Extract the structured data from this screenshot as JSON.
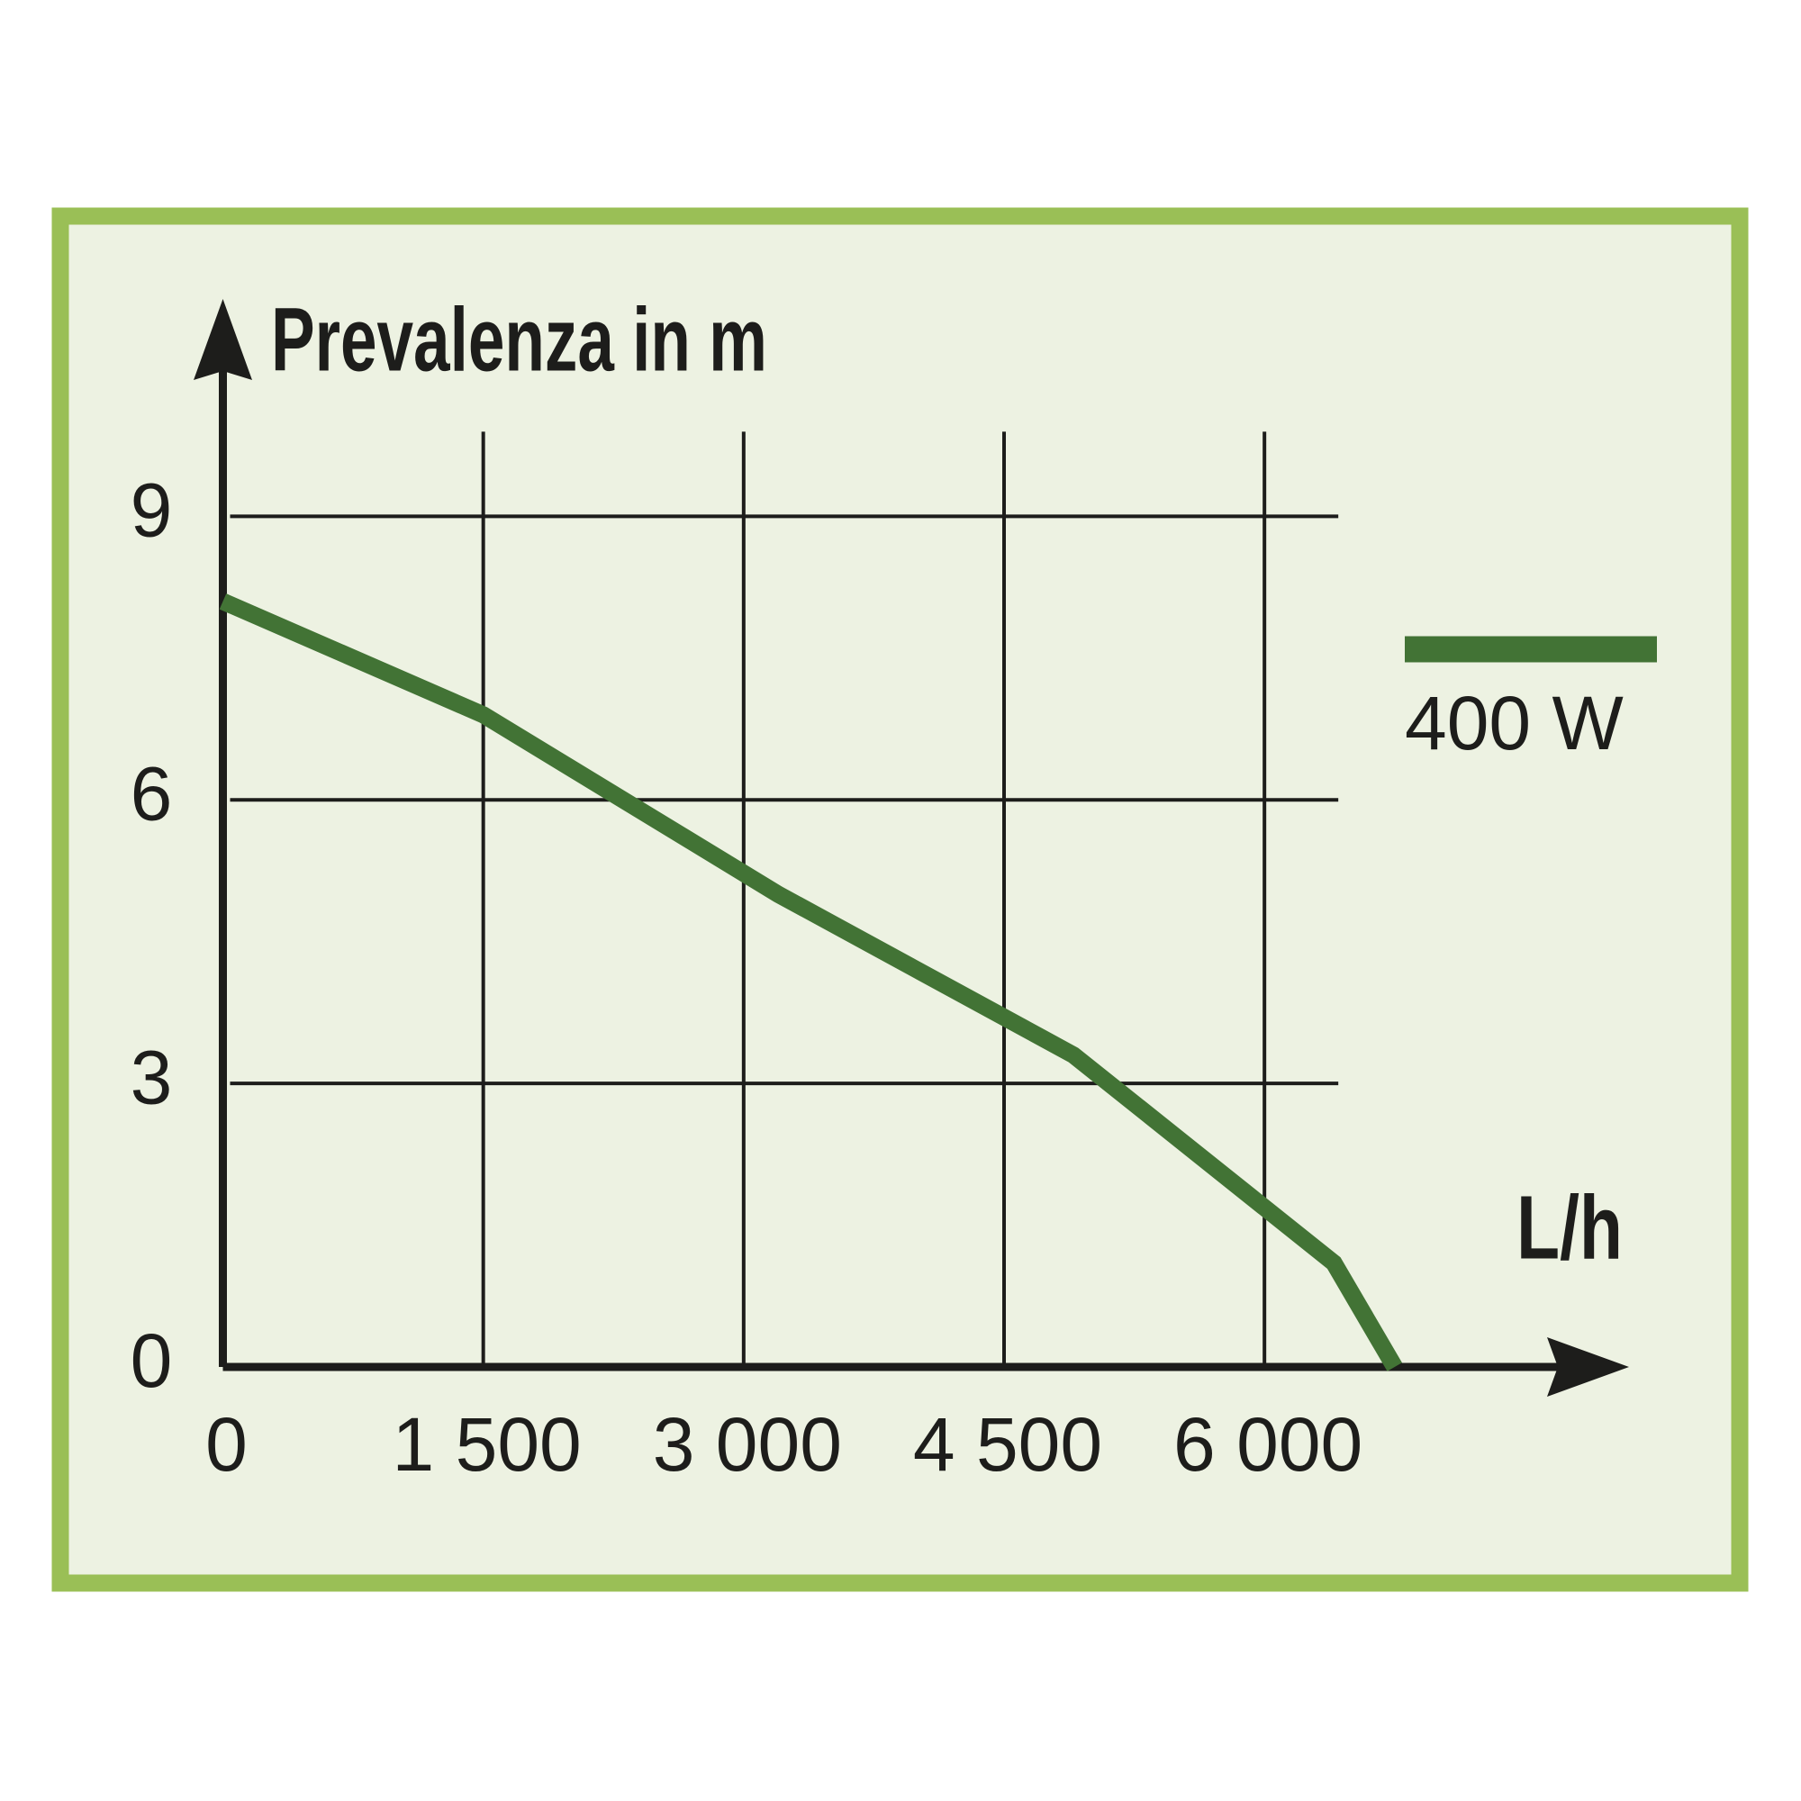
{
  "chart_data": {
    "type": "line",
    "y_label": "Prevalenza in m",
    "x_label": "L/h",
    "x": [
      0,
      1500,
      3200,
      4900,
      6400,
      6750
    ],
    "series": [
      {
        "name": "400 W",
        "color": "#427335",
        "values": [
          8.1,
          6.9,
          5.0,
          3.3,
          1.1,
          0
        ]
      }
    ],
    "xlim": [
      0,
      8100
    ],
    "ylim": [
      0,
      11.3
    ],
    "xticks": [
      0,
      {
        "value": 1500,
        "label": "1 500"
      },
      {
        "value": 3000,
        "label": "3 000"
      },
      {
        "value": 4500,
        "label": "4 500"
      },
      {
        "value": 6000,
        "label": "6 000"
      }
    ],
    "yticks": [
      0,
      3,
      6,
      9
    ],
    "grid": true,
    "legend": "right"
  }
}
